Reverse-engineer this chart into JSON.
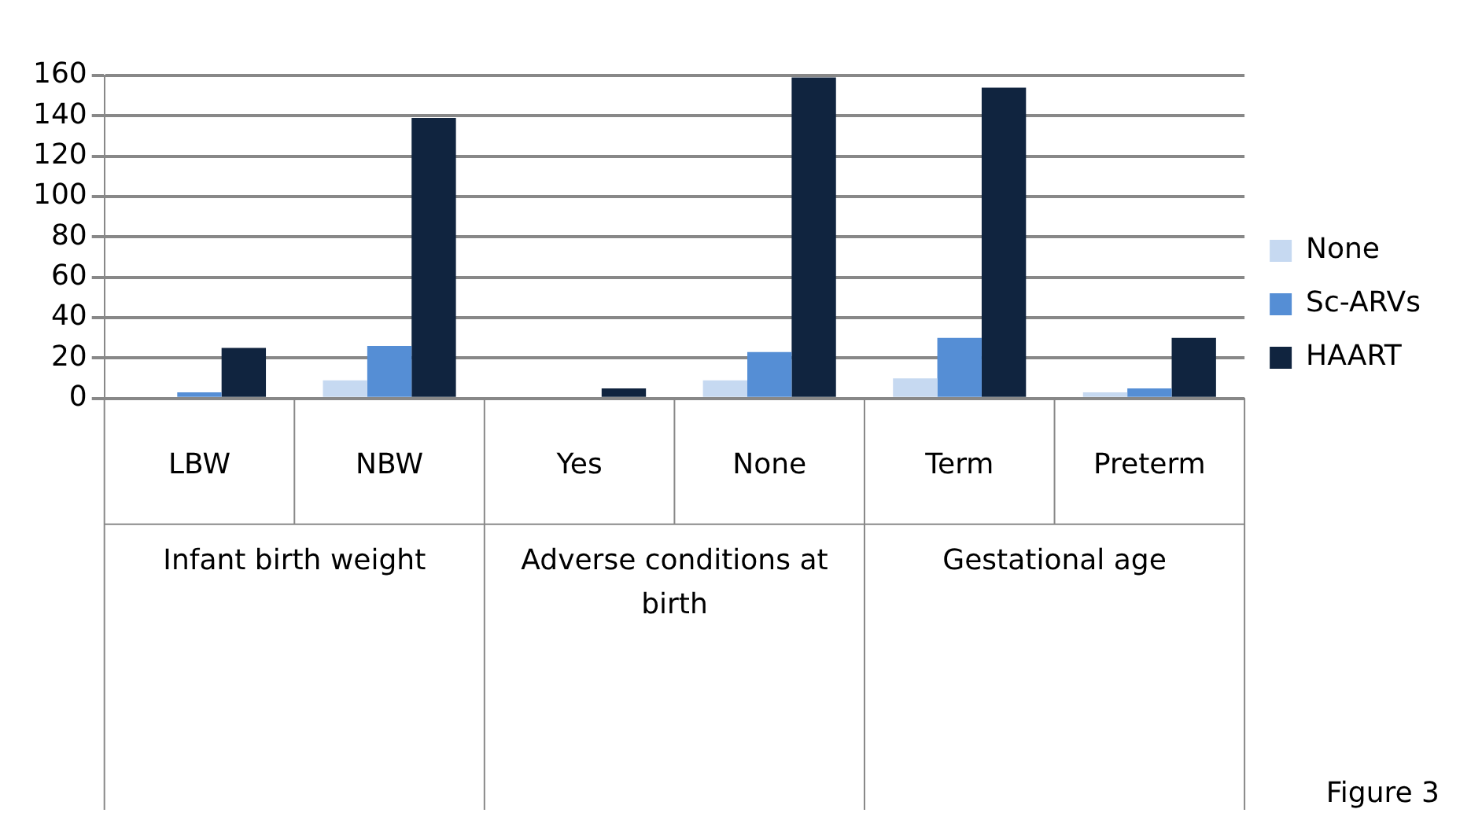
{
  "chart_data": {
    "type": "bar",
    "categories": [
      "LBW",
      "NBW",
      "Yes",
      "None",
      "Term",
      "Preterm"
    ],
    "series": [
      {
        "name": "None",
        "color": "#c6d9f1",
        "values": [
          0,
          9,
          0,
          9,
          10,
          3
        ]
      },
      {
        "name": "Sc-ARVs",
        "color": "#558ed5",
        "values": [
          3,
          26,
          0,
          23,
          30,
          5
        ]
      },
      {
        "name": "HAART",
        "color": "#10243f",
        "values": [
          25,
          139,
          5,
          159,
          154,
          30
        ]
      }
    ],
    "ylim": [
      0,
      160
    ],
    "yticks": [
      0,
      20,
      40,
      60,
      80,
      100,
      120,
      140,
      160
    ],
    "grid": "y",
    "legend": "right",
    "annotations": [
      "Infant birth weight",
      "Adverse conditions at birth",
      "Gestational age",
      "Figure 3"
    ]
  }
}
